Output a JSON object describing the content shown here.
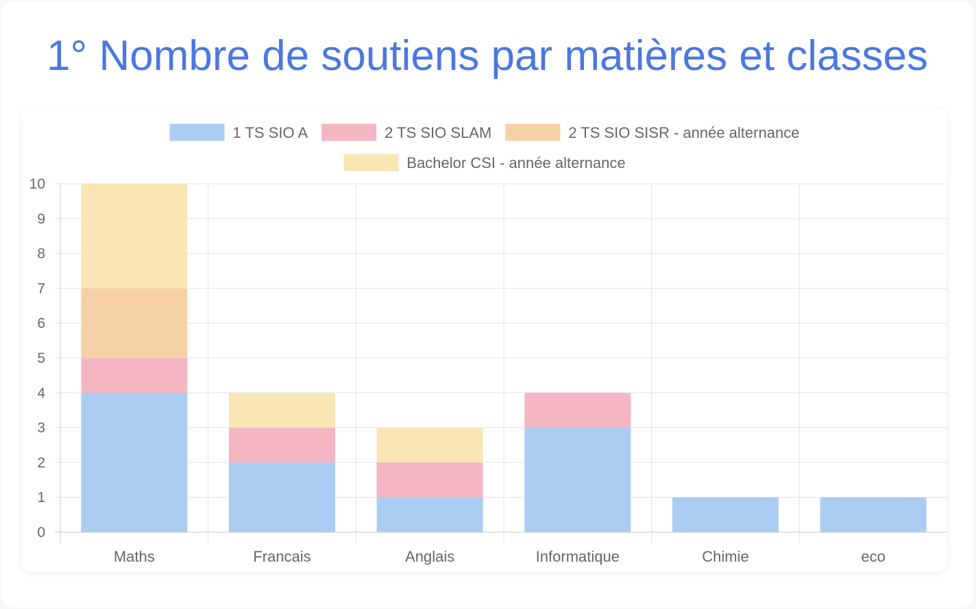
{
  "page": {
    "title": "1° Nombre de soutiens par matières et classes"
  },
  "chart_data": {
    "type": "bar",
    "stacked": true,
    "categories": [
      "Maths",
      "Francais",
      "Anglais",
      "Informatique",
      "Chimie",
      "eco"
    ],
    "series": [
      {
        "name": "1 TS SIO A",
        "color": "#abcdf2",
        "values": [
          4,
          2,
          1,
          3,
          1,
          1
        ]
      },
      {
        "name": "2 TS SIO SLAM",
        "color": "#f5b6c3",
        "values": [
          1,
          1,
          1,
          1,
          0,
          0
        ]
      },
      {
        "name": "2 TS SIO SISR - année alternance",
        "color": "#f7d1a6",
        "values": [
          2,
          0,
          0,
          0,
          0,
          0
        ]
      },
      {
        "name": "Bachelor CSI - année alternance",
        "color": "#fae6b4",
        "values": [
          3,
          1,
          1,
          0,
          0,
          0
        ]
      }
    ],
    "ylim": [
      0,
      10
    ],
    "yticks": [
      "0",
      "1",
      "2",
      "3",
      "4",
      "5",
      "6",
      "7",
      "8",
      "9",
      "10"
    ],
    "grid": true,
    "legend_position": "top-center",
    "xlabel": "",
    "ylabel": ""
  }
}
